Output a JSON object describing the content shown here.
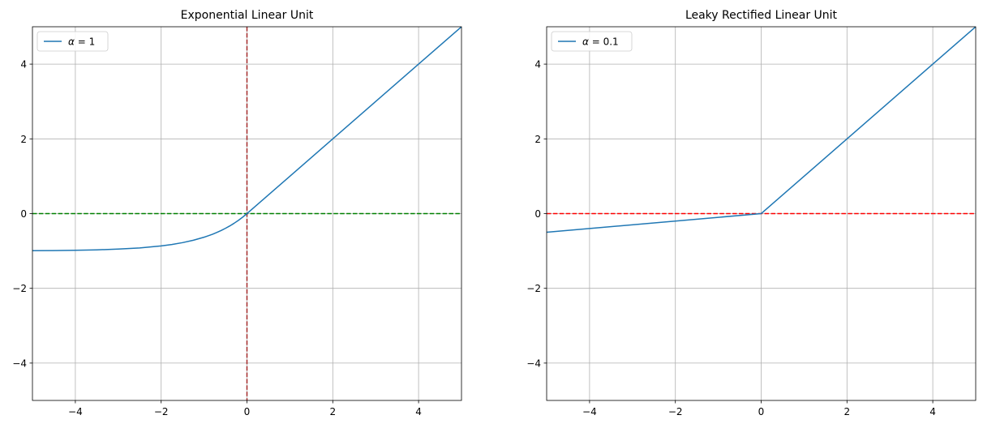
{
  "chart_data": [
    {
      "type": "line",
      "title": "Exponential Linear Unit",
      "xlabel": "",
      "ylabel": "",
      "xlim": [
        -5,
        5
      ],
      "ylim": [
        -5,
        5
      ],
      "xticks": [
        -4,
        -2,
        0,
        2,
        4
      ],
      "yticks": [
        -4,
        -2,
        0,
        2,
        4
      ],
      "xtick_labels": [
        "−4",
        "−2",
        "0",
        "2",
        "4"
      ],
      "ytick_labels": [
        "−4",
        "−2",
        "0",
        "2",
        "4"
      ],
      "grid": true,
      "legend_position": "upper-left",
      "series": [
        {
          "name": "α = 1",
          "legend_symbol": "α",
          "legend_rest": " = 1",
          "color": "#1f77b4",
          "x": [
            -5,
            -4.5,
            -4,
            -3.5,
            -3,
            -2.5,
            -2,
            -1.75,
            -1.5,
            -1.25,
            -1,
            -0.9,
            -0.8,
            -0.7,
            -0.6,
            -0.5,
            -0.4,
            -0.3,
            -0.2,
            -0.1,
            0,
            1,
            2,
            3,
            4,
            5
          ],
          "y": [
            -0.993,
            -0.989,
            -0.982,
            -0.97,
            -0.95,
            -0.918,
            -0.865,
            -0.826,
            -0.777,
            -0.713,
            -0.632,
            -0.593,
            -0.551,
            -0.503,
            -0.451,
            -0.393,
            -0.33,
            -0.259,
            -0.181,
            -0.095,
            0,
            1,
            2,
            3,
            4,
            5
          ]
        }
      ],
      "reference_lines": [
        {
          "orientation": "horizontal",
          "value": 0,
          "color": "#008000",
          "style": "dashed"
        },
        {
          "orientation": "vertical",
          "value": 0,
          "color": "#a52a2a",
          "style": "dashed"
        }
      ]
    },
    {
      "type": "line",
      "title": "Leaky Rectified Linear Unit",
      "xlabel": "",
      "ylabel": "",
      "xlim": [
        -5,
        5
      ],
      "ylim": [
        -5,
        5
      ],
      "xticks": [
        -4,
        -2,
        0,
        2,
        4
      ],
      "yticks": [
        -4,
        -2,
        0,
        2,
        4
      ],
      "xtick_labels": [
        "−4",
        "−2",
        "0",
        "2",
        "4"
      ],
      "ytick_labels": [
        "−4",
        "−2",
        "0",
        "2",
        "4"
      ],
      "grid": true,
      "legend_position": "upper-left",
      "series": [
        {
          "name": "α = 0.1",
          "legend_symbol": "α",
          "legend_rest": " = 0.1",
          "color": "#1f77b4",
          "x": [
            -5,
            0,
            5
          ],
          "y": [
            -0.5,
            0,
            5
          ]
        }
      ],
      "reference_lines": [
        {
          "orientation": "horizontal",
          "value": 0,
          "color": "#ff0000",
          "style": "dashed"
        }
      ]
    }
  ]
}
